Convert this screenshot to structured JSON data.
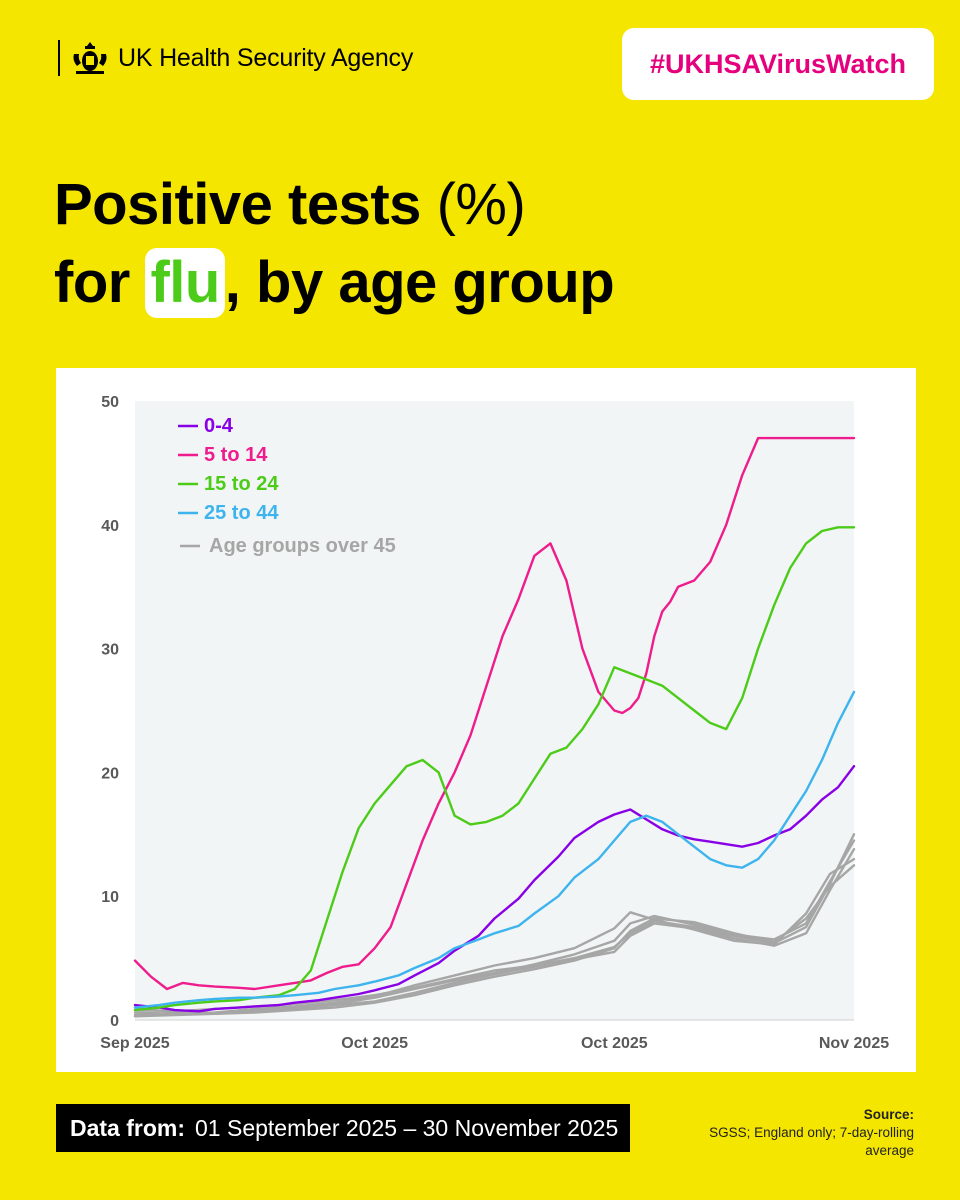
{
  "header": {
    "agency_name": "UK Health Security Agency",
    "hashtag": "#UKHSAVirusWatch"
  },
  "title": {
    "part1": "Positive tests",
    "part1_light": " (%)",
    "part2_pre": "for ",
    "highlight": "flu",
    "part2_post": ", by age group"
  },
  "colors": {
    "background": "#f5e600",
    "hashtag": "#e5007e",
    "highlight": "#4ccc19",
    "plot_bg": "#f2f5f5"
  },
  "chart_data": {
    "type": "line",
    "title": "Positive tests (%) for flu, by age group",
    "xlabel": "",
    "ylabel": "",
    "ylim": [
      0,
      50
    ],
    "xlim": [
      0,
      90
    ],
    "yticks": [
      0,
      10,
      20,
      30,
      40,
      50
    ],
    "xticks": [
      {
        "x": 0,
        "label": "Sep 2025"
      },
      {
        "x": 30,
        "label": "Oct 2025"
      },
      {
        "x": 60,
        "label": "Oct 2025"
      },
      {
        "x": 90,
        "label": "Nov 2025"
      }
    ],
    "legend_position": "top-left",
    "series": [
      {
        "name": "Age groups over 45",
        "color": "#a6a6a6",
        "x": [
          0,
          5,
          10,
          15,
          20,
          25,
          30,
          35,
          40,
          45,
          50,
          55,
          60,
          62,
          65,
          70,
          75,
          80,
          84,
          87,
          90
        ],
        "y": [
          0.8,
          0.7,
          0.9,
          1.1,
          1.3,
          1.6,
          2.0,
          2.6,
          3.3,
          4.0,
          4.4,
          5.0,
          5.9,
          7.0,
          8.0,
          7.5,
          6.8,
          6.2,
          7.5,
          11.0,
          15.0
        ]
      },
      {
        "name": "Age groups over 45",
        "color": "#a6a6a6",
        "x": [
          0,
          5,
          10,
          15,
          20,
          25,
          30,
          35,
          40,
          45,
          50,
          55,
          60,
          62,
          65,
          70,
          75,
          80,
          84,
          87,
          90
        ],
        "y": [
          0.4,
          0.5,
          0.6,
          0.8,
          1.0,
          1.3,
          1.8,
          2.5,
          3.2,
          3.8,
          4.5,
          5.3,
          6.4,
          7.8,
          8.4,
          7.7,
          6.9,
          6.5,
          7.8,
          11.2,
          14.5
        ]
      },
      {
        "name": "Age groups over 45",
        "color": "#a6a6a6",
        "x": [
          0,
          5,
          10,
          15,
          20,
          25,
          30,
          35,
          40,
          45,
          50,
          55,
          60,
          62,
          65,
          70,
          75,
          80,
          84,
          87,
          90
        ],
        "y": [
          1.0,
          0.6,
          0.5,
          0.7,
          0.9,
          1.2,
          1.5,
          2.2,
          3.0,
          3.7,
          4.3,
          4.9,
          5.5,
          6.8,
          7.8,
          7.4,
          6.6,
          6.0,
          7.0,
          10.5,
          13.8
        ]
      },
      {
        "name": "Age groups over 45",
        "color": "#a6a6a6",
        "x": [
          0,
          5,
          10,
          15,
          20,
          25,
          30,
          35,
          40,
          45,
          50,
          55,
          60,
          62,
          65,
          70,
          75,
          80,
          84,
          87,
          90
        ],
        "y": [
          0.6,
          0.5,
          0.6,
          0.9,
          1.1,
          1.4,
          1.9,
          2.8,
          3.6,
          4.4,
          5.0,
          5.8,
          7.4,
          8.7,
          8.1,
          7.3,
          6.4,
          6.1,
          8.6,
          11.8,
          13.0
        ]
      },
      {
        "name": "Age groups over 45",
        "color": "#a6a6a6",
        "x": [
          0,
          5,
          10,
          15,
          20,
          25,
          30,
          35,
          40,
          45,
          50,
          55,
          60,
          62,
          65,
          70,
          75,
          80,
          84,
          87,
          90
        ],
        "y": [
          0.3,
          0.4,
          0.5,
          0.6,
          0.8,
          1.0,
          1.4,
          2.0,
          2.8,
          3.5,
          4.1,
          4.8,
          5.8,
          7.2,
          8.2,
          7.9,
          7.0,
          6.3,
          8.2,
          10.8,
          12.5
        ]
      },
      {
        "name": "0-4",
        "color": "#8a00e6",
        "x": [
          0,
          3,
          5,
          8,
          10,
          13,
          15,
          18,
          20,
          23,
          25,
          28,
          30,
          33,
          35,
          38,
          40,
          43,
          45,
          48,
          50,
          53,
          55,
          58,
          60,
          62,
          64,
          66,
          68,
          70,
          72,
          74,
          76,
          78,
          80,
          82,
          84,
          86,
          88,
          90
        ],
        "y": [
          1.2,
          1.0,
          0.8,
          0.7,
          0.9,
          1.0,
          1.1,
          1.2,
          1.4,
          1.6,
          1.8,
          2.1,
          2.4,
          2.9,
          3.6,
          4.6,
          5.6,
          6.8,
          8.2,
          9.8,
          11.3,
          13.2,
          14.7,
          16.0,
          16.6,
          17.0,
          16.2,
          15.4,
          14.9,
          14.6,
          14.4,
          14.2,
          14.0,
          14.3,
          14.9,
          15.4,
          16.5,
          17.8,
          18.8,
          20.5
        ]
      },
      {
        "name": "5 to 14",
        "color": "#ee1c8c",
        "x": [
          0,
          2,
          4,
          6,
          8,
          10,
          13,
          15,
          18,
          20,
          22,
          24,
          26,
          28,
          30,
          32,
          34,
          36,
          38,
          40,
          42,
          44,
          46,
          48,
          50,
          52,
          54,
          56,
          58,
          60,
          61,
          62,
          63,
          64,
          65,
          66,
          67,
          68,
          70,
          72,
          74,
          76,
          78,
          80,
          82,
          84,
          86,
          88,
          90
        ],
        "y": [
          4.8,
          3.5,
          2.5,
          3.0,
          2.8,
          2.7,
          2.6,
          2.5,
          2.8,
          3.0,
          3.2,
          3.8,
          4.3,
          4.5,
          5.8,
          7.5,
          11.0,
          14.5,
          17.5,
          20.0,
          23.0,
          27.0,
          31.0,
          34.0,
          37.5,
          38.5,
          35.5,
          30.0,
          26.5,
          25.0,
          24.8,
          25.2,
          26.0,
          28.0,
          31.0,
          33.0,
          33.8,
          35.0,
          35.5,
          37.0,
          40.0,
          44.0,
          47.0,
          47.0,
          47.0,
          47.0,
          47.0,
          47.0,
          47.0
        ]
      },
      {
        "name": "15 to 24",
        "color": "#4ccc19",
        "x": [
          0,
          3,
          5,
          8,
          10,
          13,
          15,
          18,
          20,
          22,
          24,
          26,
          28,
          30,
          32,
          34,
          36,
          38,
          40,
          42,
          44,
          46,
          48,
          50,
          52,
          54,
          56,
          58,
          60,
          62,
          64,
          66,
          68,
          70,
          72,
          74,
          76,
          78,
          80,
          82,
          84,
          86,
          88,
          90
        ],
        "y": [
          0.8,
          1.0,
          1.2,
          1.4,
          1.5,
          1.6,
          1.8,
          2.0,
          2.5,
          4.0,
          8.0,
          12.0,
          15.5,
          17.5,
          19.0,
          20.5,
          21.0,
          20.0,
          16.5,
          15.8,
          16.0,
          16.5,
          17.5,
          19.5,
          21.5,
          22.0,
          23.5,
          25.5,
          28.5,
          28.0,
          27.5,
          27.0,
          26.0,
          25.0,
          24.0,
          23.5,
          26.0,
          30.0,
          33.5,
          36.5,
          38.5,
          39.5,
          39.8,
          39.8
        ]
      },
      {
        "name": "25 to 44",
        "color": "#3db4ee",
        "x": [
          0,
          3,
          5,
          8,
          10,
          13,
          15,
          18,
          20,
          23,
          25,
          28,
          30,
          33,
          35,
          38,
          40,
          43,
          45,
          48,
          50,
          53,
          55,
          58,
          60,
          62,
          64,
          66,
          68,
          70,
          72,
          74,
          76,
          78,
          80,
          82,
          84,
          86,
          88,
          90
        ],
        "y": [
          1.0,
          1.2,
          1.4,
          1.6,
          1.7,
          1.8,
          1.8,
          1.9,
          2.0,
          2.2,
          2.5,
          2.8,
          3.1,
          3.6,
          4.2,
          5.0,
          5.8,
          6.5,
          7.0,
          7.6,
          8.6,
          10.0,
          11.5,
          13.0,
          14.5,
          16.0,
          16.5,
          16.0,
          15.0,
          14.0,
          13.0,
          12.5,
          12.3,
          13.0,
          14.5,
          16.5,
          18.5,
          21.0,
          24.0,
          26.5
        ]
      }
    ],
    "legend": [
      {
        "label": "0-4",
        "color": "#8a00e6"
      },
      {
        "label": "5 to 14",
        "color": "#ee1c8c"
      },
      {
        "label": "15 to 24",
        "color": "#4ccc19"
      },
      {
        "label": "25 to 44",
        "color": "#3db4ee"
      },
      {
        "label": "Age groups over 45",
        "color": "#a6a6a6"
      }
    ]
  },
  "footer": {
    "data_from_label": "Data from:",
    "data_from_range": "01 September 2025 – 30 November 2025",
    "source_title": "Source:",
    "source_text": "SGSS; England only; 7-day-rolling average"
  }
}
